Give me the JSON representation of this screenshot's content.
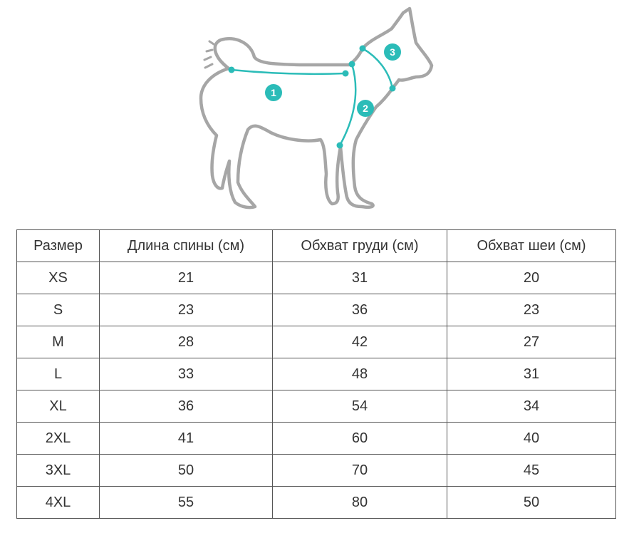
{
  "diagram": {
    "outline_color": "#a6a6a6",
    "accent_color": "#2bbcb8",
    "markers": [
      {
        "label": "1",
        "meaning": "back-length"
      },
      {
        "label": "2",
        "meaning": "chest-girth"
      },
      {
        "label": "3",
        "meaning": "neck-girth"
      }
    ]
  },
  "table": {
    "headers": [
      "Размер",
      "Длина спины (см)",
      "Обхват груди (см)",
      "Обхват  шеи (см)"
    ],
    "rows": [
      [
        "XS",
        "21",
        "31",
        "20"
      ],
      [
        "S",
        "23",
        "36",
        "23"
      ],
      [
        "M",
        "28",
        "42",
        "27"
      ],
      [
        "L",
        "33",
        "48",
        "31"
      ],
      [
        "XL",
        "36",
        "54",
        "34"
      ],
      [
        "2XL",
        "41",
        "60",
        "40"
      ],
      [
        "3XL",
        "50",
        "70",
        "45"
      ],
      [
        "4XL",
        "55",
        "80",
        "50"
      ]
    ]
  }
}
